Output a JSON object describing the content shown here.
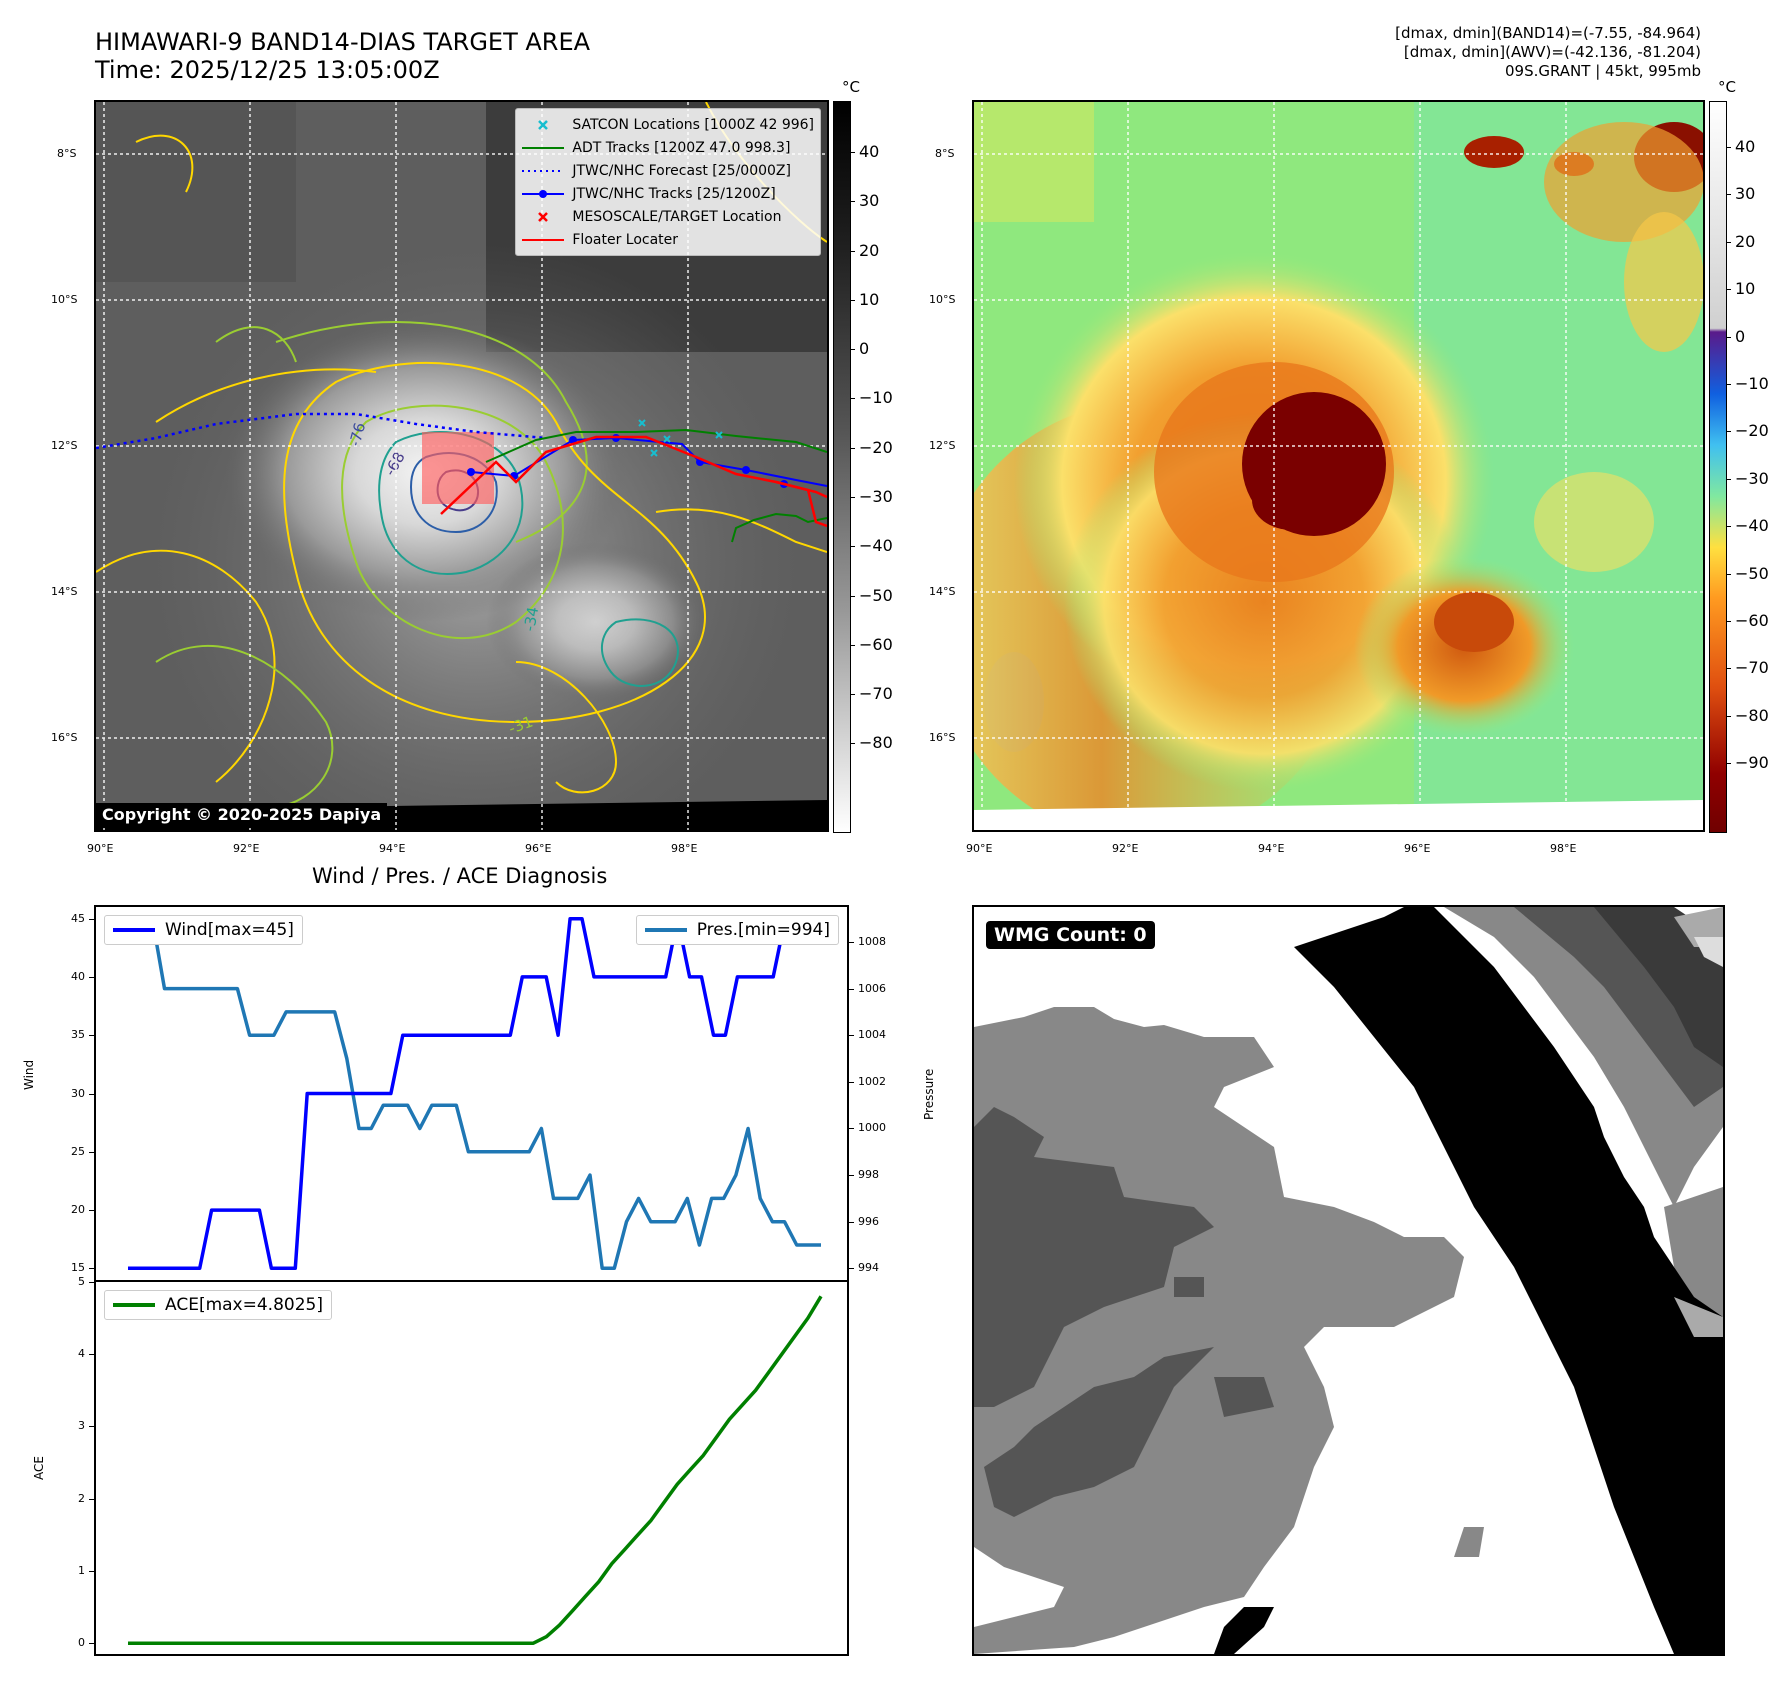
{
  "header": {
    "title_line1": "HIMAWARI-9 BAND14-DIAS TARGET AREA",
    "title_line2": "Time: 2025/12/25 13:05:00Z",
    "info_line1": "[dmax, dmin](BAND14)=(-7.55, -84.964)",
    "info_line2": "[dmax, dmin](AWV)=(-42.136, -81.204)",
    "info_line3": "09S.GRANT | 45kt, 995mb"
  },
  "map": {
    "lat_ticks": [
      "8°S",
      "10°S",
      "12°S",
      "14°S",
      "16°S"
    ],
    "lon_ticks": [
      "90°E",
      "92°E",
      "94°E",
      "96°E",
      "98°E"
    ],
    "copyright": "Copyright © 2020-2025 Dapiya",
    "legend": [
      {
        "label": "SATCON Locations [1000Z 42 996]",
        "color": "#17becf",
        "style": "x"
      },
      {
        "label": "ADT Tracks [1200Z 47.0 998.3]",
        "color": "#008000",
        "style": "line"
      },
      {
        "label": "JTWC/NHC Forecast [25/0000Z]",
        "color": "#0000ff",
        "style": "dotted"
      },
      {
        "label": "JTWC/NHC Tracks [25/1200Z]",
        "color": "#0000ff",
        "style": "line-dot"
      },
      {
        "label": "MESOSCALE/TARGET Location",
        "color": "#ff0000",
        "style": "x"
      },
      {
        "label": "Floater Locater",
        "color": "#ff0000",
        "style": "line"
      }
    ],
    "contour_labels": [
      "-76",
      "-68",
      "-34",
      "-31"
    ]
  },
  "colorbar_left": {
    "unit": "°C",
    "ticks": [
      "40",
      "30",
      "20",
      "10",
      "0",
      "−10",
      "−20",
      "−30",
      "−40",
      "−50",
      "−60",
      "−70",
      "−80"
    ]
  },
  "colorbar_right": {
    "unit": "°C",
    "ticks": [
      "40",
      "30",
      "20",
      "10",
      "0",
      "−10",
      "−20",
      "−30",
      "−40",
      "−50",
      "−60",
      "−70",
      "−80",
      "−90"
    ]
  },
  "diag": {
    "title": "Wind / Pres. / ACE Diagnosis",
    "wind_ylabel": "Wind",
    "pres_ylabel": "Pressure",
    "ace_ylabel": "ACE",
    "wind_legend": "Wind[max=45]",
    "pres_legend": "Pres.[min=994]",
    "ace_legend": "ACE[max=4.8025]",
    "wind_color": "#0000ff",
    "pres_color": "#1f77b4",
    "ace_color": "#008000"
  },
  "wmg": {
    "label": "WMG Count: 0"
  },
  "chart_data": [
    {
      "type": "line",
      "title": "Wind / Pres. / ACE Diagnosis",
      "ylabel": "Wind",
      "ylim": [
        14,
        46
      ],
      "yticks": [
        15,
        20,
        25,
        30,
        35,
        40,
        45
      ],
      "series": [
        {
          "name": "Wind[max=45]",
          "values": [
            15,
            15,
            15,
            15,
            15,
            15,
            15,
            20,
            20,
            20,
            20,
            20,
            15,
            15,
            15,
            30,
            30,
            30,
            30,
            30,
            30,
            30,
            30,
            35,
            35,
            35,
            35,
            35,
            35,
            35,
            35,
            35,
            35,
            40,
            40,
            40,
            35,
            45,
            45,
            40,
            40,
            40,
            40,
            40,
            40,
            40,
            45,
            40,
            40,
            35,
            35,
            40,
            40,
            40,
            40,
            45,
            45,
            45,
            45
          ]
        }
      ]
    },
    {
      "type": "line",
      "ylabel": "Pressure",
      "ylim": [
        993.5,
        1009.5
      ],
      "yticks": [
        994,
        996,
        998,
        1000,
        1002,
        1004,
        1006,
        1008
      ],
      "series": [
        {
          "name": "Pres.[min=994]",
          "values": [
            1009,
            1009,
            1009,
            1006,
            1006,
            1006,
            1006,
            1006,
            1006,
            1006,
            1004,
            1004,
            1004,
            1005,
            1005,
            1005,
            1005,
            1005,
            1003,
            1000,
            1000,
            1001,
            1001,
            1001,
            1000,
            1001,
            1001,
            1001,
            999,
            999,
            999,
            999,
            999,
            999,
            1000,
            997,
            997,
            997,
            998,
            994,
            994,
            996,
            997,
            996,
            996,
            996,
            997,
            995,
            997,
            997,
            998,
            1000,
            997,
            996,
            996,
            995,
            995,
            995
          ]
        }
      ]
    },
    {
      "type": "line",
      "ylabel": "ACE",
      "ylim": [
        -0.15,
        5.0
      ],
      "yticks": [
        0,
        1,
        2,
        3,
        4,
        5
      ],
      "series": [
        {
          "name": "ACE[max=4.8025]",
          "values": [
            0,
            0,
            0,
            0,
            0,
            0,
            0,
            0,
            0,
            0,
            0,
            0,
            0,
            0,
            0,
            0,
            0,
            0,
            0,
            0,
            0,
            0,
            0,
            0,
            0,
            0,
            0,
            0,
            0,
            0,
            0,
            0,
            0.09,
            0.25,
            0.45,
            0.65,
            0.85,
            1.1,
            1.3,
            1.5,
            1.7,
            1.95,
            2.2,
            2.4,
            2.6,
            2.85,
            3.1,
            3.3,
            3.5,
            3.75,
            4.0,
            4.25,
            4.5,
            4.8025
          ]
        }
      ]
    }
  ]
}
